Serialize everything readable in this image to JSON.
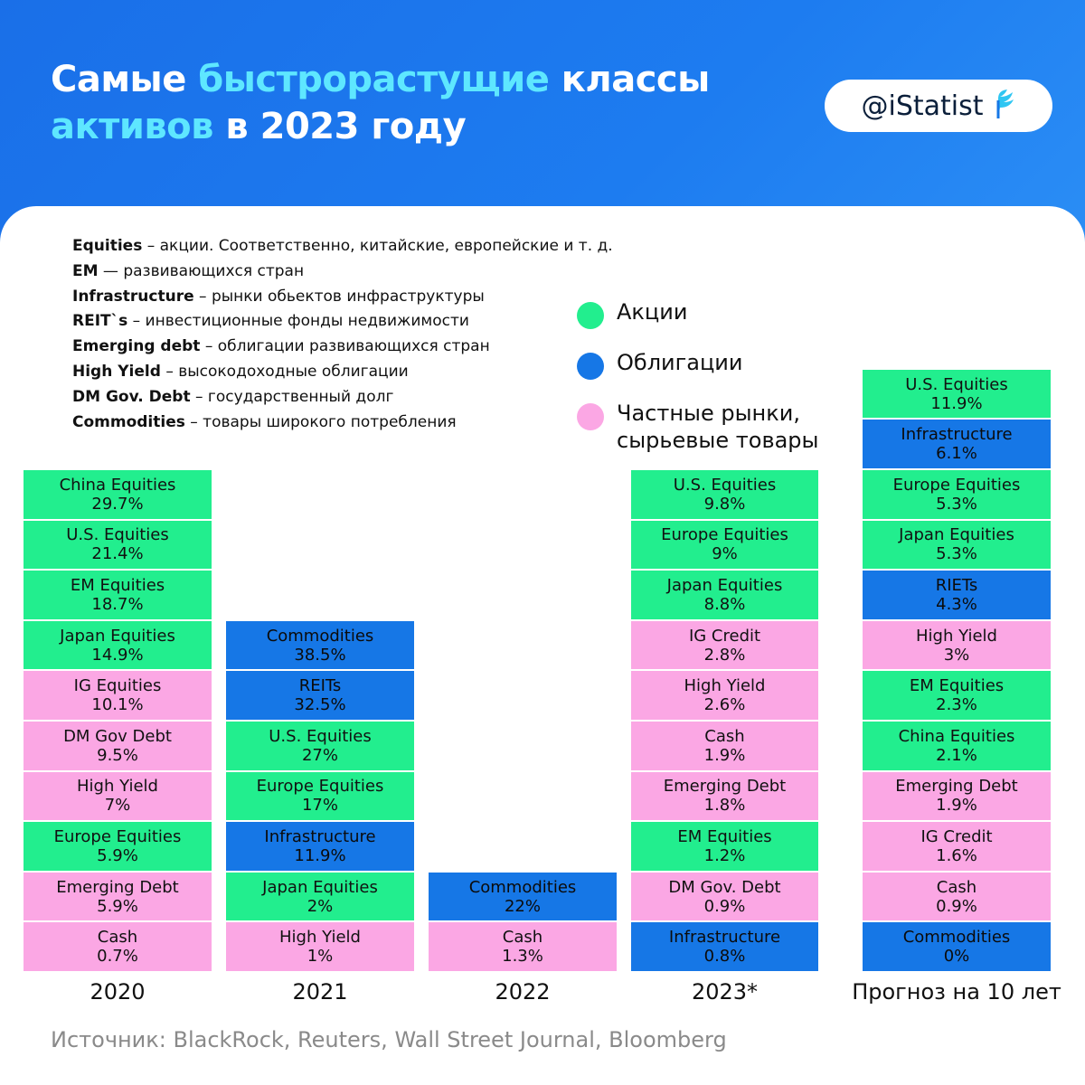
{
  "header": {
    "title_line1_a": "Самые ",
    "title_line1_b": "быстрорастущие",
    "title_line1_c": " классы",
    "title_line2_a": "активов",
    "title_line2_b": " в 2023 году",
    "brand": "@iStatist"
  },
  "glossary": [
    {
      "term": "Equities",
      "desc": " – акции. Соответственно, китайские, европейские и т. д."
    },
    {
      "term": "EM",
      "desc": " — развивающихся стран"
    },
    {
      "term": "Infrastructure",
      "desc": " – рынки обьектов инфраструктуры"
    },
    {
      "term": "REIT`s",
      "desc": " – инвестиционные фонды недвижимости"
    },
    {
      "term": "Emerging debt",
      "desc": " – облигации развивающихся стран"
    },
    {
      "term": "High Yield",
      "desc": " – высокодоходные облигации"
    },
    {
      "term": "DM Gov. Debt",
      "desc": " – государственный долг"
    },
    {
      "term": "Commodities",
      "desc": " – товары широкого потребления"
    }
  ],
  "legend": [
    {
      "key": "equity",
      "label": "Акции",
      "color": "#22ee8e"
    },
    {
      "key": "bond",
      "label": "Облигации",
      "color": "#1677e6"
    },
    {
      "key": "private",
      "label": "Частные рынки,\nсырьевые товары",
      "color": "#fba7e4"
    }
  ],
  "colors": {
    "equity": "#22ee8e",
    "bond": "#1677e6",
    "private": "#fba7e4"
  },
  "source": "Источник: BlackRock, Reuters, Wall Street Journal, Bloomberg",
  "chart_data": {
    "type": "table",
    "columns": [
      {
        "label": "2020",
        "items": [
          {
            "name": "China Equities",
            "value": "29.7%",
            "cat": "equity"
          },
          {
            "name": "U.S. Equities",
            "value": "21.4%",
            "cat": "equity"
          },
          {
            "name": "EM Equities",
            "value": "18.7%",
            "cat": "equity"
          },
          {
            "name": "Japan Equities",
            "value": "14.9%",
            "cat": "equity"
          },
          {
            "name": "IG Equities",
            "value": "10.1%",
            "cat": "private"
          },
          {
            "name": "DM Gov Debt",
            "value": "9.5%",
            "cat": "private"
          },
          {
            "name": "High Yield",
            "value": "7%",
            "cat": "private"
          },
          {
            "name": "Europe Equities",
            "value": "5.9%",
            "cat": "equity"
          },
          {
            "name": "Emerging Debt",
            "value": "5.9%",
            "cat": "private"
          },
          {
            "name": "Cash",
            "value": "0.7%",
            "cat": "private"
          }
        ]
      },
      {
        "label": "2021",
        "items": [
          {
            "name": "Commodities",
            "value": "38.5%",
            "cat": "bond"
          },
          {
            "name": "REITs",
            "value": "32.5%",
            "cat": "bond"
          },
          {
            "name": "U.S. Equities",
            "value": "27%",
            "cat": "equity"
          },
          {
            "name": "Europe Equities",
            "value": "17%",
            "cat": "equity"
          },
          {
            "name": "Infrastructure",
            "value": "11.9%",
            "cat": "bond"
          },
          {
            "name": "Japan Equities",
            "value": "2%",
            "cat": "equity"
          },
          {
            "name": "High Yield",
            "value": "1%",
            "cat": "private"
          }
        ]
      },
      {
        "label": "2022",
        "items": [
          {
            "name": "Commodities",
            "value": "22%",
            "cat": "bond"
          },
          {
            "name": "Cash",
            "value": "1.3%",
            "cat": "private"
          }
        ]
      },
      {
        "label": "2023*",
        "items": [
          {
            "name": "U.S. Equities",
            "value": "9.8%",
            "cat": "equity"
          },
          {
            "name": "Europe Equities",
            "value": "9%",
            "cat": "equity"
          },
          {
            "name": "Japan Equities",
            "value": "8.8%",
            "cat": "equity"
          },
          {
            "name": "IG Credit",
            "value": "2.8%",
            "cat": "private"
          },
          {
            "name": "High Yield",
            "value": "2.6%",
            "cat": "private"
          },
          {
            "name": "Cash",
            "value": "1.9%",
            "cat": "private"
          },
          {
            "name": "Emerging Debt",
            "value": "1.8%",
            "cat": "private"
          },
          {
            "name": "EM Equities",
            "value": "1.2%",
            "cat": "equity"
          },
          {
            "name": "DM Gov. Debt",
            "value": "0.9%",
            "cat": "private"
          },
          {
            "name": "Infrastructure",
            "value": "0.8%",
            "cat": "bond"
          }
        ]
      },
      {
        "label": "Прогноз на 10 лет",
        "items": [
          {
            "name": "U.S. Equities",
            "value": "11.9%",
            "cat": "equity"
          },
          {
            "name": "Infrastructure",
            "value": "6.1%",
            "cat": "bond"
          },
          {
            "name": "Europe Equities",
            "value": "5.3%",
            "cat": "equity"
          },
          {
            "name": "Japan Equities",
            "value": "5.3%",
            "cat": "equity"
          },
          {
            "name": "RIETs",
            "value": "4.3%",
            "cat": "bond"
          },
          {
            "name": "High Yield",
            "value": "3%",
            "cat": "private"
          },
          {
            "name": "EM Equities",
            "value": "2.3%",
            "cat": "equity"
          },
          {
            "name": "China Equities",
            "value": "2.1%",
            "cat": "equity"
          },
          {
            "name": "Emerging Debt",
            "value": "1.9%",
            "cat": "private"
          },
          {
            "name": "IG Credit",
            "value": "1.6%",
            "cat": "private"
          },
          {
            "name": "Cash",
            "value": "0.9%",
            "cat": "private"
          },
          {
            "name": "Commodities",
            "value": "0%",
            "cat": "bond"
          }
        ]
      }
    ]
  }
}
